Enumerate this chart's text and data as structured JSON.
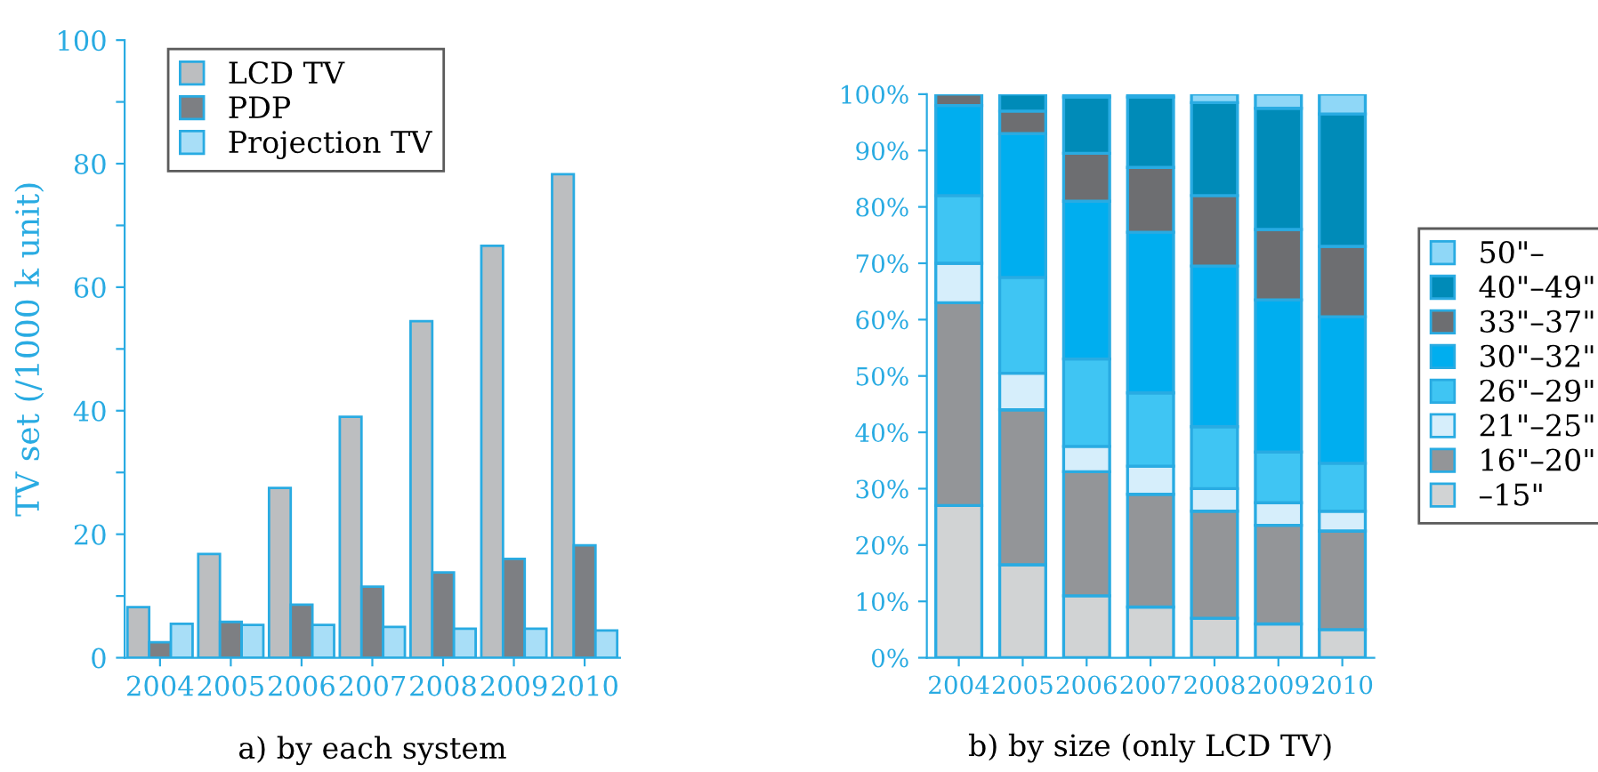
{
  "chart_data": [
    {
      "type": "bar",
      "xlabel": "a) by each system",
      "ylabel": "TV set (/1000 k unit)",
      "categories": [
        "2004",
        "2005",
        "2006",
        "2007",
        "2008",
        "2009",
        "2010"
      ],
      "series": [
        {
          "name": "LCD TV",
          "color": "#bcbec0",
          "values": [
            8.2,
            16.8,
            27.5,
            39,
            54.5,
            66.7,
            78.3
          ]
        },
        {
          "name": "PDP",
          "color": "#7d7f83",
          "values": [
            2.5,
            5.8,
            8.6,
            11.5,
            13.8,
            16,
            18.2
          ]
        },
        {
          "name": "Projection TV",
          "color": "#a8def7",
          "values": [
            5.5,
            5.3,
            5.3,
            5,
            4.7,
            4.7,
            4.4
          ]
        }
      ],
      "ylim": [
        0,
        100
      ],
      "yticks": [
        0,
        {
          "value": 10,
          "label": null
        },
        20,
        {
          "value": 30,
          "label": null
        },
        40,
        {
          "value": 50,
          "label": null
        },
        60,
        {
          "value": 70,
          "label": null
        },
        80,
        {
          "value": 90,
          "label": null
        },
        100
      ],
      "legend": "top left",
      "grid": false
    },
    {
      "type": "bar",
      "stacked": true,
      "xlabel": "b) by size (only LCD TV)",
      "categories": [
        "2004",
        "2005",
        "2006",
        "2007",
        "2008",
        "2009",
        "2010"
      ],
      "series": [
        {
          "name": "–15\"",
          "color": "#d1d3d4",
          "values": [
            27,
            16.5,
            11,
            9,
            7,
            6,
            5
          ]
        },
        {
          "name": "16\"–20\"",
          "color": "#939598",
          "values": [
            36,
            27.5,
            22,
            20,
            19,
            17.5,
            17.5
          ]
        },
        {
          "name": "21\"–25\"",
          "color": "#d6eefb",
          "values": [
            7,
            6.5,
            4.5,
            5,
            4,
            4,
            3.5
          ]
        },
        {
          "name": "26\"–29\"",
          "color": "#3fc5f3",
          "values": [
            12,
            17,
            15.5,
            13,
            11,
            9,
            8.5
          ]
        },
        {
          "name": "30\"–32\"",
          "color": "#00aeef",
          "values": [
            16,
            25.5,
            28,
            28.5,
            28.5,
            27,
            26
          ]
        },
        {
          "name": "33\"–37\"",
          "color": "#6d6e71",
          "values": [
            2,
            4,
            8.5,
            11.5,
            12.5,
            12.5,
            12.5
          ]
        },
        {
          "name": "40\"–49\"",
          "color": "#008bb8",
          "values": [
            null,
            3,
            10,
            12.5,
            16.5,
            21.5,
            23.5
          ]
        },
        {
          "name": "50\"–",
          "color": "#8fd7f7",
          "values": [
            null,
            null,
            0.5,
            0.5,
            1.5,
            2.5,
            3.5
          ]
        }
      ],
      "ylim": [
        0,
        100
      ],
      "yticks": [
        {
          "value": 0,
          "label": "0%"
        },
        {
          "value": 10,
          "label": "10%"
        },
        {
          "value": 20,
          "label": "20%"
        },
        {
          "value": 30,
          "label": "30%"
        },
        {
          "value": 40,
          "label": "40%"
        },
        {
          "value": 50,
          "label": "50%"
        },
        {
          "value": 60,
          "label": "60%"
        },
        {
          "value": 70,
          "label": "70%"
        },
        {
          "value": 80,
          "label": "80%"
        },
        {
          "value": 90,
          "label": "90%"
        },
        {
          "value": 100,
          "label": "100%"
        }
      ],
      "legend": "right",
      "grid": false
    }
  ]
}
